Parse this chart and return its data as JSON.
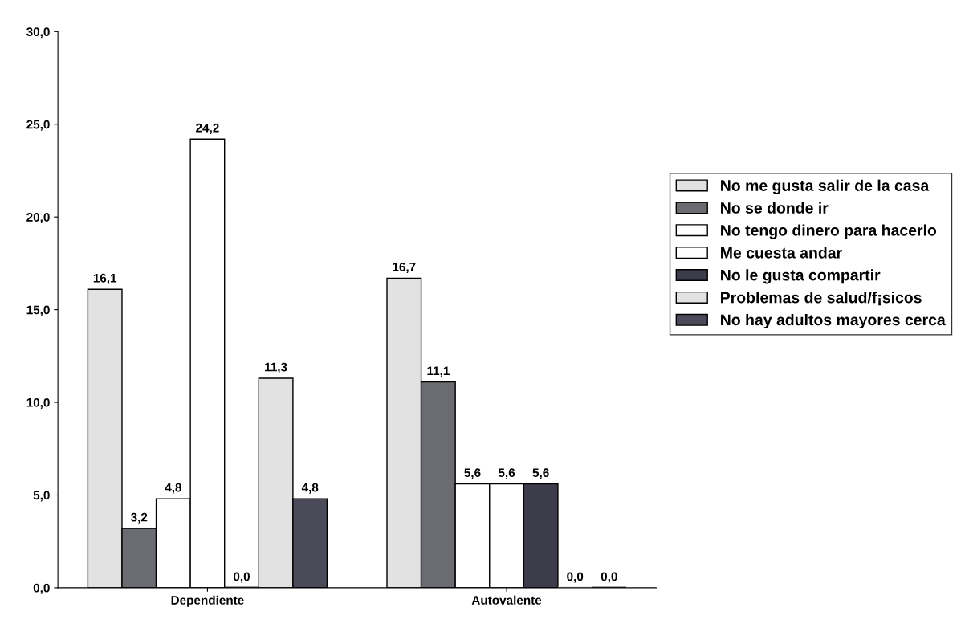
{
  "chart_data": {
    "type": "bar",
    "categories": [
      "Dependiente",
      "Autovalente"
    ],
    "series": [
      {
        "name": "No me gusta salir de la casa",
        "color": "#e2e2e2",
        "values": [
          16.1,
          16.7
        ],
        "value_labels": [
          "16,1",
          "16,7"
        ]
      },
      {
        "name": "No se donde ir",
        "color": "#6b6b72",
        "values": [
          3.2,
          11.1
        ],
        "value_labels": [
          "3,2",
          "11,1"
        ]
      },
      {
        "name": "No tengo dinero para hacerlo",
        "color": "#ffffff",
        "values": [
          4.8,
          5.6
        ],
        "value_labels": [
          "4,8",
          "5,6"
        ]
      },
      {
        "name": "Me cuesta andar",
        "color": "#ffffff",
        "values": [
          24.2,
          5.6
        ],
        "value_labels": [
          "24,2",
          "5,6"
        ]
      },
      {
        "name": "No le gusta compartir",
        "color": "#3c3c4a",
        "values": [
          0.0,
          5.6
        ],
        "value_labels": [
          "0,0",
          "5,6"
        ]
      },
      {
        "name": "Problemas de salud/f¡sicos",
        "color": "#e2e2e2",
        "values": [
          11.3,
          0.0
        ],
        "value_labels": [
          "11,3",
          "0,0"
        ]
      },
      {
        "name": "No hay adultos mayores cerca",
        "color": "#4a4a58",
        "values": [
          4.8,
          0.0
        ],
        "value_labels": [
          "4,8",
          "0,0"
        ]
      }
    ],
    "ylim": [
      0,
      30
    ],
    "yticks": [
      {
        "value": 0,
        "label": "0,0"
      },
      {
        "value": 5,
        "label": "5,0"
      },
      {
        "value": 10,
        "label": "10,0"
      },
      {
        "value": 15,
        "label": "15,0"
      },
      {
        "value": 20,
        "label": "20,0"
      },
      {
        "value": 25,
        "label": "25,0"
      },
      {
        "value": 30,
        "label": "30,0"
      }
    ],
    "grid": false,
    "legend": "right"
  }
}
